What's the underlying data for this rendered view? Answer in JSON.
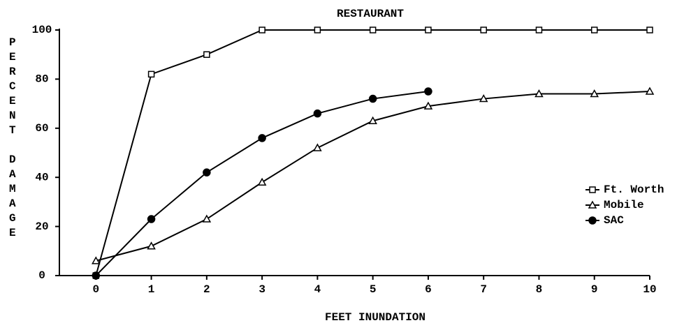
{
  "chart_data": {
    "type": "line",
    "title": "RESTAURANT",
    "x_label": "FEET INUNDATION",
    "y_label": "PERCENT DAMAGE",
    "x": [
      0,
      1,
      2,
      3,
      4,
      5,
      6,
      7,
      8,
      9,
      10
    ],
    "series": [
      {
        "name": "Ft. Worth",
        "color": "#000000",
        "marker": "square",
        "values": [
          0,
          82,
          90,
          100,
          100,
          100,
          100,
          100,
          100,
          100,
          100
        ]
      },
      {
        "name": "Mobile",
        "color": "#000000",
        "marker": "triangle",
        "values": [
          6,
          12,
          23,
          38,
          52,
          63,
          69,
          72,
          74,
          74,
          75
        ]
      },
      {
        "name": "SAC",
        "color": "#000000",
        "marker": "filled-circle",
        "values": [
          0,
          23,
          42,
          56,
          66,
          72,
          75,
          null,
          null,
          null,
          null
        ]
      }
    ],
    "xlim": [
      -0.66,
      10
    ],
    "xticks": [
      0,
      1,
      2,
      3,
      4,
      5,
      6,
      7,
      8,
      9,
      10
    ],
    "ylim": [
      0,
      100
    ],
    "yticks": [
      0,
      20,
      40,
      60,
      80,
      100
    ],
    "legend": "right"
  }
}
